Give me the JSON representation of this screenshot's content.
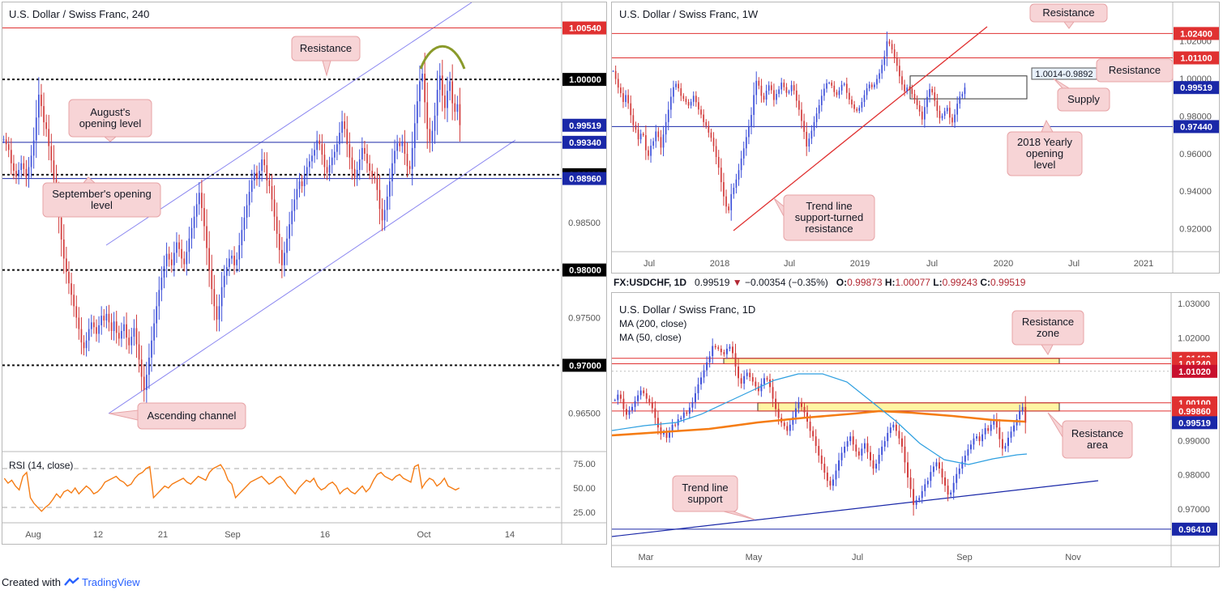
{
  "footer": {
    "created_with": "Created with",
    "brand": "TradingView"
  },
  "colors": {
    "up": "#3f51d9",
    "down": "#d23c3c",
    "red_line": "#e03131",
    "blue_line": "#1a28a8",
    "callout_fill": "#f7d4d6",
    "callout_border": "#e7a3a6",
    "zone_fill": "#fff4a3",
    "ma200": "#f57c14",
    "ma50": "#2d9fe0",
    "rsi": "#f57c14",
    "channel": "#8a86f0",
    "green": "#8a9a2a"
  },
  "chart_data": [
    {
      "type": "candlestick",
      "title": "U.S. Dollar / Swiss Franc, 240",
      "x_ticks": [
        "Aug",
        "12",
        "21",
        "Sep",
        "16",
        "Oct",
        "14"
      ],
      "y_ticks": [
        "0.98500",
        "0.97500",
        "0.96500"
      ],
      "ylim": [
        0.9612,
        1.0074
      ],
      "levels": [
        {
          "value": 1.0054,
          "label": "1.00540",
          "style": "red"
        },
        {
          "value": 1.0,
          "label": "1.00000",
          "style": "dotted"
        },
        {
          "value": 0.99519,
          "label": "0.99519",
          "style": "price"
        },
        {
          "value": 0.9934,
          "label": "0.99340",
          "style": "blue"
        },
        {
          "value": 0.99,
          "label": "0.99000",
          "style": "dotted"
        },
        {
          "value": 0.9896,
          "label": "0.98960",
          "style": "blue"
        },
        {
          "value": 0.98,
          "label": "0.98000",
          "style": "dotted"
        },
        {
          "value": 0.97,
          "label": "0.97000",
          "style": "dotted"
        }
      ],
      "annotations": [
        "Resistance",
        "August's\nopening level",
        "September's opening\nlevel",
        "Ascending channel"
      ],
      "rsi": {
        "label": "RSI (14, close)",
        "ticks": [
          "75.00",
          "50.00",
          "25.00"
        ],
        "upper": 70,
        "lower": 30,
        "values": [
          60,
          55,
          58,
          52,
          48,
          62,
          66,
          40,
          34,
          30,
          26,
          30,
          33,
          38,
          44,
          40,
          46,
          48,
          45,
          50,
          44,
          48,
          52,
          49,
          44,
          46,
          50,
          56,
          58,
          60,
          62,
          58,
          56,
          52,
          54,
          60,
          64,
          66,
          70,
          72,
          40,
          44,
          48,
          52,
          50,
          54,
          56,
          58,
          60,
          56,
          54,
          58,
          62,
          60,
          58,
          66,
          70,
          72,
          74,
          68,
          58,
          54,
          40,
          44,
          48,
          52,
          56,
          58,
          60,
          62,
          58,
          54,
          56,
          60,
          62,
          58,
          52,
          48,
          44,
          50,
          54,
          58,
          56,
          60,
          52,
          48,
          50,
          54,
          56,
          52,
          44,
          48,
          50,
          46,
          44,
          48,
          52,
          46,
          50,
          58,
          64,
          66,
          62,
          60,
          58,
          62,
          64,
          60,
          58,
          56,
          72,
          74,
          50,
          56,
          60,
          58,
          52,
          55,
          60,
          52,
          50,
          48,
          50
        ]
      },
      "series": [
        {
          "name": "",
          "values": [
            0.9937,
            0.9932,
            0.9926,
            0.9912,
            0.9904,
            0.9898,
            0.9905,
            0.9912,
            0.9906,
            0.9897,
            0.9908,
            0.992,
            0.9936,
            0.996,
            0.9984,
            0.9972,
            0.9955,
            0.9948,
            0.993,
            0.9915,
            0.9895,
            0.9876,
            0.9855,
            0.9832,
            0.9812,
            0.9798,
            0.9786,
            0.9774,
            0.9762,
            0.975,
            0.9738,
            0.9724,
            0.9718,
            0.9726,
            0.9738,
            0.9745,
            0.974,
            0.9733,
            0.9742,
            0.9752,
            0.9747,
            0.9754,
            0.9745,
            0.9736,
            0.9746,
            0.9734,
            0.9728,
            0.9736,
            0.9743,
            0.9729,
            0.9721,
            0.973,
            0.9739,
            0.9722,
            0.9706,
            0.9688,
            0.9674,
            0.969,
            0.9708,
            0.9726,
            0.9744,
            0.9762,
            0.9779,
            0.9792,
            0.9804,
            0.9817,
            0.9811,
            0.9805,
            0.9818,
            0.9829,
            0.9822,
            0.9812,
            0.9806,
            0.9819,
            0.9833,
            0.9844,
            0.9856,
            0.9869,
            0.9881,
            0.9865,
            0.9846,
            0.9823,
            0.98,
            0.978,
            0.9762,
            0.9748,
            0.9762,
            0.9782,
            0.9794,
            0.9803,
            0.9812,
            0.9815,
            0.9805,
            0.9811,
            0.9826,
            0.9842,
            0.9855,
            0.9868,
            0.9882,
            0.9894,
            0.9902,
            0.9896,
            0.9904,
            0.9916,
            0.991,
            0.9894,
            0.9888,
            0.9874,
            0.9856,
            0.9838,
            0.9821,
            0.9805,
            0.9818,
            0.9833,
            0.9848,
            0.9862,
            0.9874,
            0.9885,
            0.9893,
            0.9888,
            0.9899,
            0.9908,
            0.9914,
            0.992,
            0.9926,
            0.9936,
            0.9932,
            0.9921,
            0.9908,
            0.9902,
            0.991,
            0.9918,
            0.9924,
            0.9932,
            0.9944,
            0.9956,
            0.9948,
            0.9932,
            0.9918,
            0.9906,
            0.9897,
            0.9905,
            0.9916,
            0.9928,
            0.9922,
            0.9912,
            0.9904,
            0.9898,
            0.9896,
            0.9884,
            0.9864,
            0.9852,
            0.9863,
            0.9877,
            0.9893,
            0.9912,
            0.9925,
            0.9933,
            0.993,
            0.9935,
            0.9922,
            0.9909,
            0.9906,
            0.9928,
            0.9954,
            0.9977,
            0.9998,
            1.0006,
            0.9976,
            0.9948,
            0.9935,
            0.9946,
            0.9962,
            0.9989,
            1.0004,
            0.9983,
            0.997,
            0.9988,
            0.9998,
            0.9975,
            0.9966,
            0.9974,
            0.9952
          ]
        }
      ]
    },
    {
      "type": "candlestick",
      "title": "U.S. Dollar / Swiss Franc, 1W",
      "x_ticks": [
        "Jul",
        "2018",
        "Jul",
        "2019",
        "Jul",
        "2020",
        "Jul",
        "2021"
      ],
      "y_ticks": [
        "1.02000",
        "1.00000",
        "0.98000",
        "0.96000",
        "0.94000",
        "0.92000"
      ],
      "ylim": [
        0.9112,
        1.0302
      ],
      "levels": [
        {
          "value": 1.024,
          "label": "1.02400",
          "style": "red"
        },
        {
          "value": 1.011,
          "label": "1.01100",
          "style": "red"
        },
        {
          "value": 0.99519,
          "label": "0.99519",
          "style": "price"
        },
        {
          "value": 0.9744,
          "label": "0.97440",
          "style": "blue"
        }
      ],
      "supply_zone_label": "1.0014-0.9892",
      "annotations": [
        "Resistance",
        "Resistance",
        "Supply",
        "2018 Yearly\nopening\nlevel",
        "Trend line\nsupport-turned\nresistance"
      ],
      "series": [
        {
          "name": "",
          "values": [
            1.004,
            0.9998,
            0.9952,
            0.9922,
            0.9875,
            0.9912,
            0.9868,
            0.9805,
            0.9752,
            0.9728,
            0.9676,
            0.9706,
            0.9698,
            0.9618,
            0.9588,
            0.9642,
            0.9666,
            0.9718,
            0.9688,
            0.9632,
            0.9702,
            0.9768,
            0.9834,
            0.9903,
            0.9954,
            0.9972,
            0.9948,
            0.9908,
            0.9892,
            0.9875,
            0.9856,
            0.9876,
            0.9908,
            0.9874,
            0.9835,
            0.9808,
            0.9768,
            0.9748,
            0.9712,
            0.9684,
            0.964,
            0.9582,
            0.9525,
            0.9448,
            0.9372,
            0.9318,
            0.9298,
            0.9384,
            0.9418,
            0.9462,
            0.9512,
            0.9574,
            0.9628,
            0.9688,
            0.9744,
            0.9806,
            0.9912,
            0.9988,
            0.9962,
            0.9908,
            0.9888,
            0.9935,
            0.9964,
            0.9938,
            0.9886,
            0.9918,
            0.9942,
            0.9978,
            0.9954,
            0.9924,
            0.9932,
            0.9965,
            0.9936,
            0.9882,
            0.9834,
            0.9774,
            0.9716,
            0.9638,
            0.968,
            0.9722,
            0.9768,
            0.9814,
            0.9858,
            0.9908,
            0.9946,
            0.9975,
            0.9978,
            0.9962,
            0.9928,
            0.9912,
            0.9936,
            0.9966,
            0.9972,
            0.9924,
            0.9888,
            0.9862,
            0.9838,
            0.9828,
            0.9844,
            0.9875,
            0.9912,
            0.9948,
            0.9968,
            0.9954,
            0.9968,
            0.9998,
            1.0028,
            1.0072,
            1.0118,
            1.0198,
            1.0184,
            1.0155,
            1.0112,
            1.0068,
            1.0012,
            0.9968,
            0.9932,
            0.9952,
            0.9946,
            0.9918,
            0.9888,
            0.9858,
            0.9824,
            0.9782,
            0.9848,
            0.9902,
            0.9944,
            0.9926,
            0.9882,
            0.9828,
            0.9788,
            0.9802,
            0.9826,
            0.9844,
            0.9792,
            0.9766,
            0.9808,
            0.9866,
            0.9904,
            0.9918,
            0.9952
          ]
        }
      ]
    },
    {
      "type": "candlestick",
      "title": "U.S. Dollar / Swiss Franc, 1D",
      "symbol_line": {
        "symbol": "FX:USDCHF, 1D",
        "last": "0.99519",
        "change": "−0.00354 (−0.35%)",
        "o_label": "O:",
        "o": "0.99873",
        "h_label": "H:",
        "h": "1.00077",
        "l_label": "L:",
        "l": "0.99243",
        "c_label": "C:",
        "c": "0.99519"
      },
      "indicators": [
        "MA (200, close)",
        "MA (50, close)"
      ],
      "x_ticks": [
        "Mar",
        "May",
        "Jul",
        "Sep",
        "Nov"
      ],
      "y_ticks": [
        "1.03000",
        "1.02000",
        "0.99000",
        "0.98000",
        "0.97000"
      ],
      "ylim": [
        0.9617,
        1.0312
      ],
      "levels": [
        {
          "value": 1.014,
          "label": "1.01400",
          "style": "red"
        },
        {
          "value": 1.0124,
          "label": "1.01240",
          "style": "red"
        },
        {
          "value": 1.0102,
          "label": "1.01020",
          "style": "plain"
        },
        {
          "value": 1.001,
          "label": "1.00100",
          "style": "red"
        },
        {
          "value": 0.9986,
          "label": "0.99860",
          "style": "red"
        },
        {
          "value": 0.99519,
          "label": "0.99519",
          "style": "price"
        },
        {
          "value": 0.9641,
          "label": "0.96410",
          "style": "blue"
        }
      ],
      "annotations": [
        "Resistance\nzone",
        "Resistance\narea",
        "Trend line\nsupport"
      ],
      "series": [
        {
          "name": "",
          "values": [
            1.0018,
            1.0034,
            1.0022,
            0.9992,
            0.9975,
            0.9988,
            0.9998,
            1.0015,
            1.0032,
            1.0046,
            1.0038,
            1.0022,
            1.0012,
            0.9994,
            0.9966,
            0.9938,
            0.9918,
            0.9924,
            0.9908,
            0.9925,
            0.9946,
            0.9944,
            0.9962,
            0.9966,
            0.9982,
            0.9978,
            0.9996,
            1.0012,
            1.0038,
            1.0064,
            1.0084,
            1.0105,
            1.0128,
            1.0146,
            1.0176,
            1.0172,
            1.0168,
            1.0158,
            1.0152,
            1.0168,
            1.0174,
            1.0155,
            1.0116,
            1.0082,
            1.0066,
            1.0088,
            1.0098,
            1.0085,
            1.0072,
            1.0058,
            1.0044,
            1.0065,
            1.0082,
            1.0078,
            1.0056,
            1.0022,
            0.9992,
            0.9966,
            0.9952,
            0.9942,
            0.9928,
            0.9946,
            0.9968,
            0.9994,
            1.0012,
            0.9998,
            0.9982,
            0.9955,
            0.9928,
            0.9912,
            0.9884,
            0.9856,
            0.9832,
            0.9806,
            0.9782,
            0.9768,
            0.9786,
            0.9812,
            0.9842,
            0.9864,
            0.9882,
            0.9898,
            0.9912,
            0.9888,
            0.9868,
            0.9856,
            0.9876,
            0.9892,
            0.9866,
            0.9842,
            0.9818,
            0.9832,
            0.9858,
            0.9882,
            0.9898,
            0.9922,
            0.9938,
            0.9946,
            0.9928,
            0.9906,
            0.9882,
            0.9836,
            0.9792,
            0.9758,
            0.9712,
            0.9726,
            0.9732,
            0.9752,
            0.9772,
            0.9782,
            0.9808,
            0.9824,
            0.9836,
            0.9818,
            0.9792,
            0.9768,
            0.9742,
            0.9748,
            0.9776,
            0.9802,
            0.9818,
            0.9838,
            0.9856,
            0.9874,
            0.9888,
            0.9906,
            0.9912,
            0.9898,
            0.9918,
            0.9936,
            0.9928,
            0.9946,
            0.9962,
            0.9938,
            0.9904,
            0.9876,
            0.9884,
            0.9908,
            0.9926,
            0.9944,
            0.9962,
            0.9986,
            0.9998,
            0.9952
          ]
        }
      ]
    }
  ]
}
